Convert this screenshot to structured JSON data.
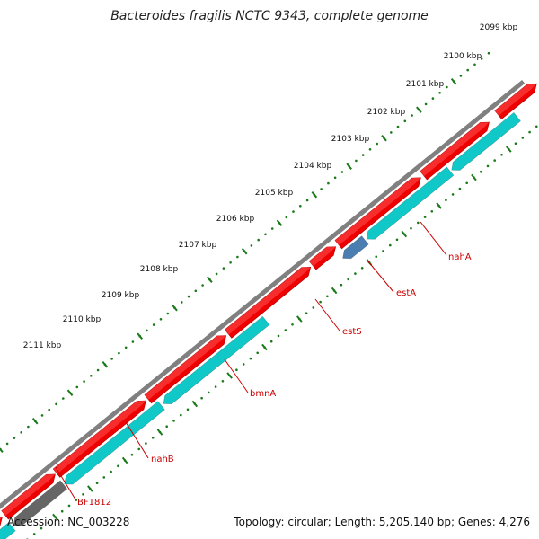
{
  "title": "Bacteroides fragilis NCTC 9343, complete genome",
  "footer": {
    "accession": "Accession: NC_003228",
    "stats": "Topology: circular; Length: 5,205,140 bp; Genes: 4,276"
  },
  "colors": {
    "backbone": "#808080",
    "forward_gene": "#ee0000",
    "reverse_gene": "#10c8c8",
    "highlight_gene": "#4a7db0",
    "other_gene": "#666666",
    "ticks": "#1a7a1a",
    "label_line": "#cc0000"
  },
  "ticks": [
    {
      "label": "2099 kbp",
      "kbp": 2099
    },
    {
      "label": "2100 kbp",
      "kbp": 2100
    },
    {
      "label": "2101 kbp",
      "kbp": 2101
    },
    {
      "label": "2102 kbp",
      "kbp": 2102
    },
    {
      "label": "2103 kbp",
      "kbp": 2103
    },
    {
      "label": "2104 kbp",
      "kbp": 2104
    },
    {
      "label": "2105 kbp",
      "kbp": 2105
    },
    {
      "label": "2106 kbp",
      "kbp": 2106
    },
    {
      "label": "2107 kbp",
      "kbp": 2107
    },
    {
      "label": "2108 kbp",
      "kbp": 2108
    },
    {
      "label": "2109 kbp",
      "kbp": 2109
    },
    {
      "label": "2110 kbp",
      "kbp": 2110
    },
    {
      "label": "2111 kbp",
      "kbp": 2111
    }
  ],
  "gene_labels": [
    {
      "label": "nahA"
    },
    {
      "label": "estA"
    },
    {
      "label": "estS"
    },
    {
      "label": "bmnA"
    },
    {
      "label": "nahB"
    },
    {
      "label": "BF1812"
    }
  ]
}
